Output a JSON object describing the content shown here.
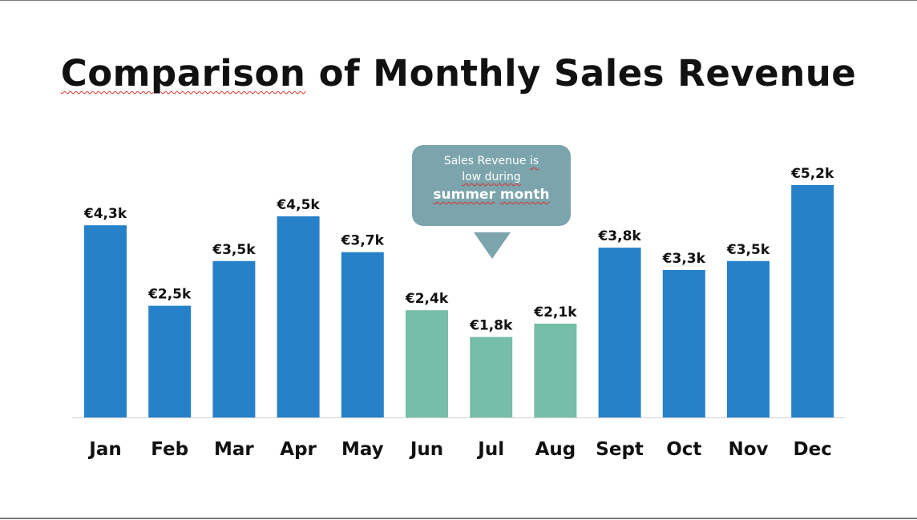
{
  "slide": {
    "title_part1": "Comparison",
    "title_part2": " of Monthly Sales Revenue"
  },
  "callout": {
    "line1_a": "Sales Revenue ",
    "line1_b": "is",
    "line2": "low during",
    "line3_a": "summer",
    "line3_b": " ",
    "line3_c": "month"
  },
  "colors": {
    "default_bar": "#2681c8",
    "highlight_bar": "#75bea8",
    "callout_bg": "#7ba4ac",
    "baseline": "#d0d0d0"
  },
  "chart_data": {
    "type": "bar",
    "title": "Comparison of Monthly Sales Revenue",
    "xlabel": "",
    "ylabel": "",
    "categories": [
      "Jan",
      "Feb",
      "Mar",
      "Apr",
      "May",
      "Jun",
      "Jul",
      "Aug",
      "Sept",
      "Oct",
      "Nov",
      "Dec"
    ],
    "values": [
      4.3,
      2.5,
      3.5,
      4.5,
      3.7,
      2.4,
      1.8,
      2.1,
      3.8,
      3.3,
      3.5,
      5.2
    ],
    "data_labels": [
      "€4,3k",
      "€2,5k",
      "€3,5k",
      "€4,5k",
      "€3,7k",
      "€2,4k",
      "€1,8k",
      "€2,1k",
      "€3,8k",
      "€3,3k",
      "€3,5k",
      "€5,2k"
    ],
    "highlighted": [
      "Jun",
      "Jul",
      "Aug"
    ],
    "ylim": [
      0,
      5.2
    ],
    "grid": false,
    "legend": "none"
  }
}
